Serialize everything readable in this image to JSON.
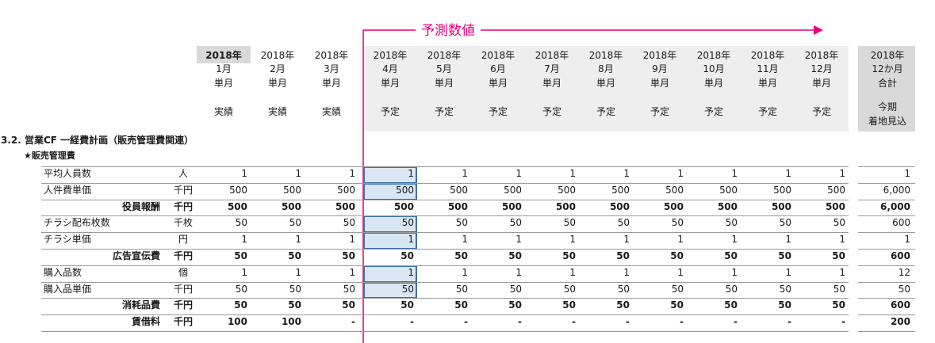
{
  "forecast_label": "予測数値",
  "section_title": "3.2. 営業CF 一経費計画（販売管理費関連）",
  "subsection_title": "★販売管理費",
  "columns": [
    {
      "year": "2018年",
      "month": "1月",
      "kind": "単月",
      "status": "実績",
      "status2": ""
    },
    {
      "year": "2018年",
      "month": "2月",
      "kind": "単月",
      "status": "実績",
      "status2": ""
    },
    {
      "year": "2018年",
      "month": "3月",
      "kind": "単月",
      "status": "実績",
      "status2": ""
    },
    {
      "year": "2018年",
      "month": "4月",
      "kind": "単月",
      "status": "予定",
      "status2": ""
    },
    {
      "year": "2018年",
      "month": "5月",
      "kind": "単月",
      "status": "予定",
      "status2": ""
    },
    {
      "year": "2018年",
      "month": "6月",
      "kind": "単月",
      "status": "予定",
      "status2": ""
    },
    {
      "year": "2018年",
      "month": "7月",
      "kind": "単月",
      "status": "予定",
      "status2": ""
    },
    {
      "year": "2018年",
      "month": "8月",
      "kind": "単月",
      "status": "予定",
      "status2": ""
    },
    {
      "year": "2018年",
      "month": "9月",
      "kind": "単月",
      "status": "予定",
      "status2": ""
    },
    {
      "year": "2018年",
      "month": "10月",
      "kind": "単月",
      "status": "予定",
      "status2": ""
    },
    {
      "year": "2018年",
      "month": "11月",
      "kind": "単月",
      "status": "予定",
      "status2": ""
    },
    {
      "year": "2018年",
      "month": "12月",
      "kind": "単月",
      "status": "予定",
      "status2": ""
    },
    {
      "year": "2018年",
      "month": "12か月",
      "kind": "合計",
      "status": "今期",
      "status2": "着地見込"
    }
  ],
  "rows": [
    {
      "label": "平均人員数",
      "unit": "人",
      "bold": false,
      "indent": false,
      "values": [
        "1",
        "1",
        "1",
        "1",
        "1",
        "1",
        "1",
        "1",
        "1",
        "1",
        "1",
        "1",
        "1"
      ]
    },
    {
      "label": "人件費単価",
      "unit": "千円",
      "bold": false,
      "indent": false,
      "values": [
        "500",
        "500",
        "500",
        "500",
        "500",
        "500",
        "500",
        "500",
        "500",
        "500",
        "500",
        "500",
        "6,000"
      ]
    },
    {
      "label": "役員報酬",
      "unit": "千円",
      "bold": true,
      "indent": true,
      "values": [
        "500",
        "500",
        "500",
        "500",
        "500",
        "500",
        "500",
        "500",
        "500",
        "500",
        "500",
        "500",
        "6,000"
      ]
    },
    {
      "label": "チラシ配布枚数",
      "unit": "千枚",
      "bold": false,
      "indent": false,
      "values": [
        "50",
        "50",
        "50",
        "50",
        "50",
        "50",
        "50",
        "50",
        "50",
        "50",
        "50",
        "50",
        "600"
      ]
    },
    {
      "label": "チラシ単価",
      "unit": "円",
      "bold": false,
      "indent": false,
      "values": [
        "1",
        "1",
        "1",
        "1",
        "1",
        "1",
        "1",
        "1",
        "1",
        "1",
        "1",
        "1",
        "1"
      ]
    },
    {
      "label": "広告宣伝費",
      "unit": "千円",
      "bold": true,
      "indent": true,
      "values": [
        "50",
        "50",
        "50",
        "50",
        "50",
        "50",
        "50",
        "50",
        "50",
        "50",
        "50",
        "50",
        "600"
      ]
    },
    {
      "label": "購入品数",
      "unit": "個",
      "bold": false,
      "indent": false,
      "values": [
        "1",
        "1",
        "1",
        "1",
        "1",
        "1",
        "1",
        "1",
        "1",
        "1",
        "1",
        "1",
        "12"
      ]
    },
    {
      "label": "購入品単価",
      "unit": "千円",
      "bold": false,
      "indent": false,
      "values": [
        "50",
        "50",
        "50",
        "50",
        "50",
        "50",
        "50",
        "50",
        "50",
        "50",
        "50",
        "50",
        "50"
      ]
    },
    {
      "label": "消耗品費",
      "unit": "千円",
      "bold": true,
      "indent": true,
      "values": [
        "50",
        "50",
        "50",
        "50",
        "50",
        "50",
        "50",
        "50",
        "50",
        "50",
        "50",
        "50",
        "600"
      ]
    },
    {
      "label": "賃借料",
      "unit": "千円",
      "bold": true,
      "indent": true,
      "values": [
        "100",
        "100",
        "-",
        "-",
        "-",
        "-",
        "-",
        "-",
        "-",
        "-",
        "-",
        "-",
        "200"
      ]
    }
  ],
  "highlighted_rows": [
    0,
    1,
    3,
    4,
    6,
    7
  ],
  "colors": {
    "accent": "#e6007e",
    "highlight_fill": "#d9e6f3",
    "highlight_border": "#3f6fa8",
    "header_bg": "#eeeeee",
    "total_bg": "#d9d9d9"
  }
}
